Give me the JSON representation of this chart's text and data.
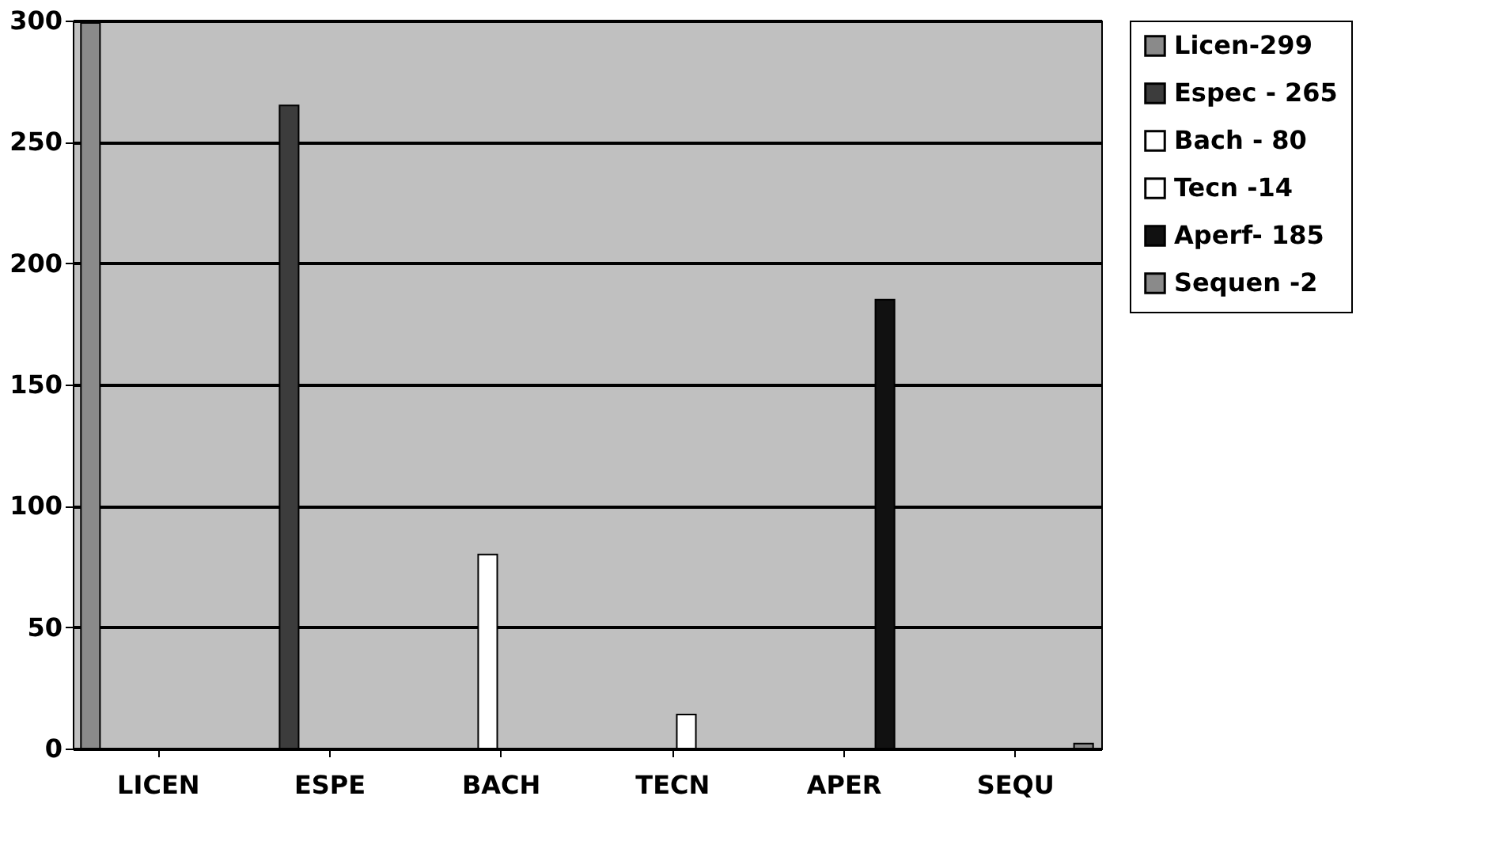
{
  "chart_data": {
    "type": "bar",
    "categories": [
      "LICEN",
      "ESPE",
      "BACH",
      "TECN",
      "APER",
      "SEQU"
    ],
    "series": [
      {
        "name": "Licen-299",
        "color": "#8a8a8a",
        "values": [
          299,
          null,
          null,
          null,
          null,
          null
        ]
      },
      {
        "name": "Espec - 265",
        "color": "#3c3c3c",
        "values": [
          null,
          265,
          null,
          null,
          null,
          null
        ]
      },
      {
        "name": "Bach - 80",
        "color": "#ffffff",
        "values": [
          null,
          null,
          80,
          null,
          null,
          null
        ]
      },
      {
        "name": "Tecn -14",
        "color": "#ffffff",
        "values": [
          null,
          null,
          null,
          14,
          null,
          null
        ]
      },
      {
        "name": "Aperf- 185",
        "color": "#111111",
        "values": [
          null,
          null,
          null,
          null,
          185,
          null
        ]
      },
      {
        "name": "Sequen -2",
        "color": "#8a8a8a",
        "values": [
          null,
          null,
          null,
          null,
          null,
          2
        ]
      }
    ],
    "ylim": [
      0,
      300
    ],
    "yticks": [
      0,
      50,
      100,
      150,
      200,
      250,
      300
    ],
    "grid": "y",
    "legend": "right"
  }
}
